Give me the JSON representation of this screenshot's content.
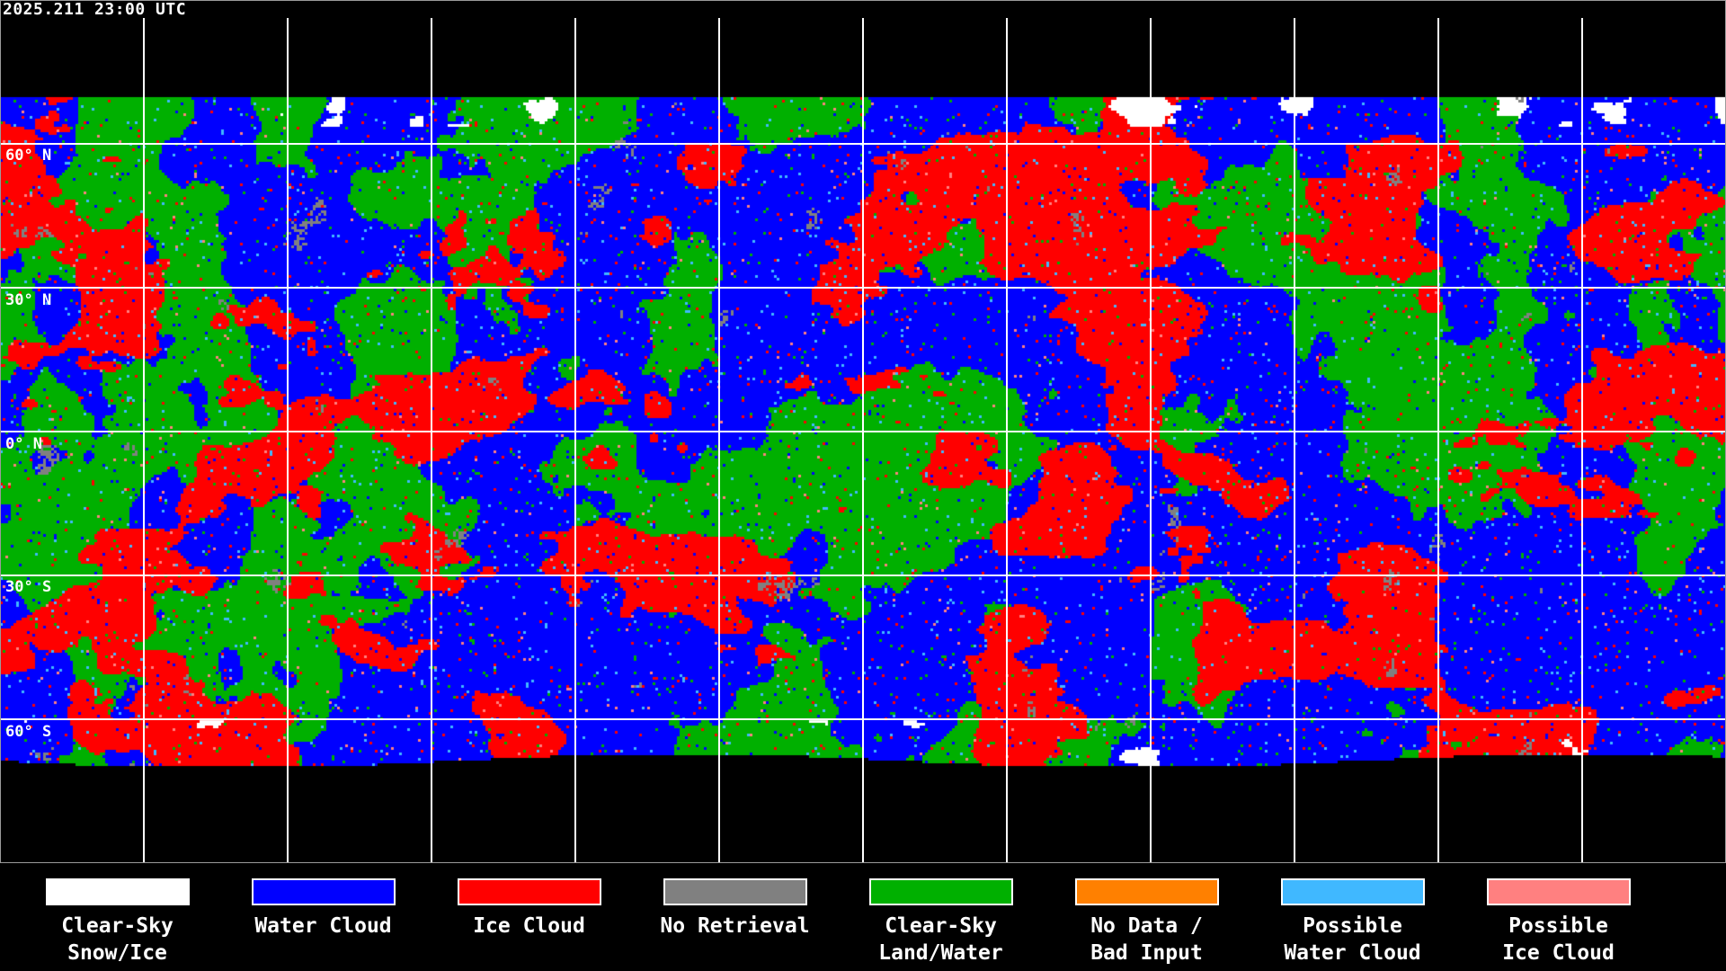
{
  "title": "2025.211 23:00 UTC",
  "latitude_labels": [
    "60° N",
    "30° N",
    "0° N",
    "30° S",
    "60° S"
  ],
  "legend": [
    {
      "label": "Clear-Sky\nSnow/Ice",
      "color": "#ffffff"
    },
    {
      "label": "Water Cloud",
      "color": "#0000ff"
    },
    {
      "label": "Ice Cloud",
      "color": "#ff0000"
    },
    {
      "label": "No Retrieval",
      "color": "#808080"
    },
    {
      "label": "Clear-Sky\nLand/Water",
      "color": "#00b000"
    },
    {
      "label": "No Data /\nBad Input",
      "color": "#ff8000"
    },
    {
      "label": "Possible\nWater Cloud",
      "color": "#40b8ff"
    },
    {
      "label": "Possible\nIce Cloud",
      "color": "#ff8080"
    }
  ]
}
